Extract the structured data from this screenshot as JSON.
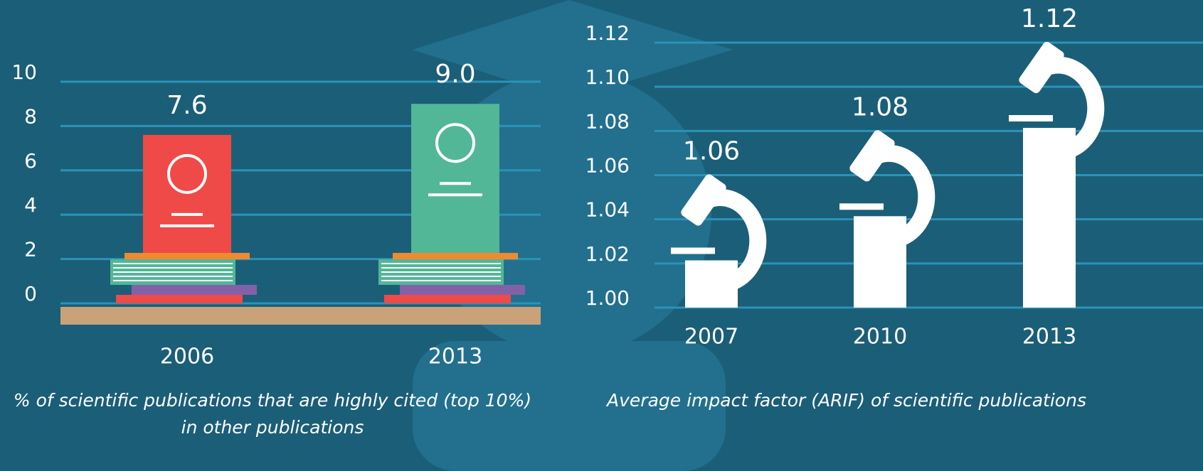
{
  "chart_data": [
    {
      "type": "bar",
      "title": "% of scientific publications that are highly cited (top 10%) in other publications",
      "categories": [
        "2006",
        "2013"
      ],
      "values": [
        7.6,
        9.0
      ],
      "value_labels": [
        "7.6",
        "9.0"
      ],
      "colors": [
        "#ef4a47",
        "#52b796"
      ],
      "ylim": [
        0,
        10
      ],
      "yticks": [
        0,
        2,
        4,
        6,
        8,
        10
      ],
      "grid": true
    },
    {
      "type": "bar",
      "title": "Average impact factor (ARIF) of scientific publications",
      "categories": [
        "2007",
        "2010",
        "2013"
      ],
      "values": [
        1.06,
        1.08,
        1.12
      ],
      "value_labels": [
        "1.06",
        "1.08",
        "1.12"
      ],
      "color": "#ffffff",
      "ylim": [
        1.0,
        1.12
      ],
      "yticks": [
        {
          "value": 1.0,
          "label": "1.00"
        },
        1.02,
        1.04,
        1.06,
        1.08,
        {
          "value": 1.1,
          "label": "1.10"
        },
        1.12
      ],
      "grid": true
    }
  ]
}
